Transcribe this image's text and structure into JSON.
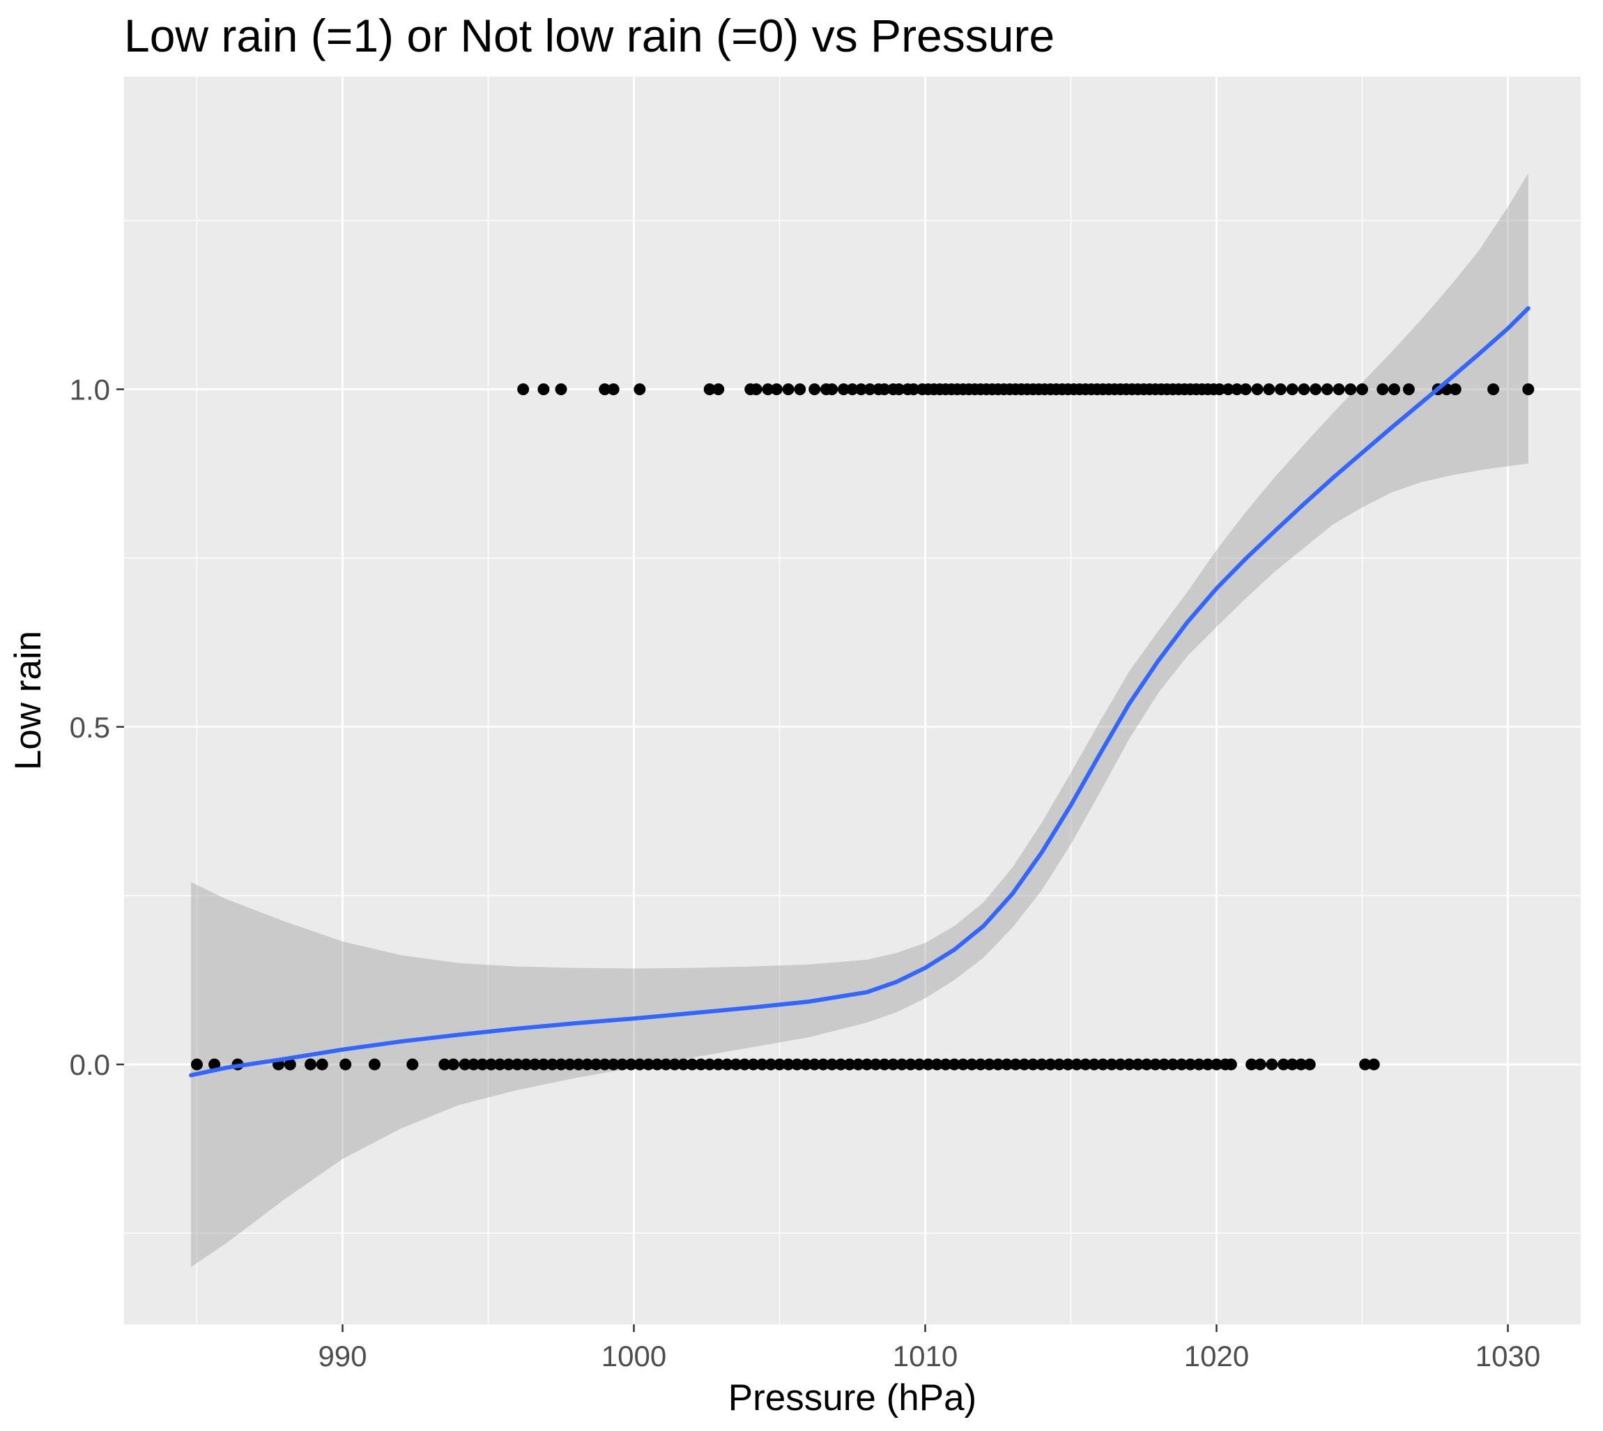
{
  "chart_data": {
    "type": "scatter",
    "title": "Low rain (=1) or Not low rain (=0) vs Pressure",
    "xlabel": "Pressure (hPa)",
    "ylabel": "Low rain",
    "xlim": [
      982.5,
      1032.5
    ],
    "ylim": [
      -0.385,
      1.463
    ],
    "x_ticks": [
      990,
      1000,
      1010,
      1020,
      1030
    ],
    "x_tick_labels": [
      "990",
      "1000",
      "1010",
      "1020",
      "1030"
    ],
    "y_ticks": [
      0.0,
      0.5,
      1.0
    ],
    "y_tick_labels": [
      "0.0",
      "0.5",
      "1.0"
    ],
    "x_minor_ticks": [
      985,
      995,
      1005,
      1015,
      1025
    ],
    "y_minor_ticks": [
      -0.25,
      0.25,
      0.75,
      1.25
    ],
    "grid": true,
    "legend": "none",
    "colors": {
      "panel": "#ebebeb",
      "grid": "#ffffff",
      "points": "#000000",
      "smooth_line": "#3366ff",
      "ribbon": "#999999"
    },
    "points_y1": [
      996.2,
      996.9,
      997.5,
      999.0,
      999.3,
      1000.2,
      1002.6,
      1002.9,
      1004.0,
      1004.2,
      1004.6,
      1004.9,
      1005.3,
      1005.7,
      1006.2,
      1006.6,
      1006.8,
      1007.2,
      1007.5,
      1007.8,
      1008.1,
      1008.4,
      1008.6,
      1008.9,
      1009.1,
      1009.4,
      1009.6,
      1009.9,
      1010.1,
      1010.3,
      1010.5,
      1010.7,
      1010.9,
      1011.1,
      1011.3,
      1011.5,
      1011.7,
      1011.9,
      1012.1,
      1012.3,
      1012.5,
      1012.7,
      1012.9,
      1013.1,
      1013.3,
      1013.5,
      1013.7,
      1013.9,
      1014.1,
      1014.3,
      1014.5,
      1014.7,
      1014.9,
      1015.1,
      1015.3,
      1015.5,
      1015.7,
      1015.9,
      1016.1,
      1016.3,
      1016.5,
      1016.7,
      1016.9,
      1017.1,
      1017.3,
      1017.5,
      1017.7,
      1017.9,
      1018.1,
      1018.3,
      1018.5,
      1018.7,
      1018.9,
      1019.1,
      1019.3,
      1019.5,
      1019.7,
      1019.9,
      1020.1,
      1020.4,
      1020.7,
      1021.0,
      1021.4,
      1021.8,
      1022.2,
      1022.6,
      1023.0,
      1023.4,
      1023.8,
      1024.2,
      1024.6,
      1025.0,
      1025.7,
      1026.1,
      1026.6,
      1027.6,
      1027.9,
      1028.2,
      1029.5,
      1030.7
    ],
    "points_y0": [
      985.0,
      985.6,
      986.4,
      987.8,
      988.2,
      988.9,
      989.3,
      990.1,
      991.1,
      992.4,
      993.5,
      993.8,
      994.2,
      994.5,
      994.8,
      995.1,
      995.4,
      995.7,
      996.0,
      996.3,
      996.6,
      996.9,
      997.2,
      997.5,
      997.8,
      998.1,
      998.4,
      998.7,
      999.0,
      999.3,
      999.6,
      999.9,
      1000.2,
      1000.5,
      1000.8,
      1001.1,
      1001.4,
      1001.7,
      1002.0,
      1002.3,
      1002.6,
      1002.9,
      1003.2,
      1003.5,
      1003.8,
      1004.1,
      1004.4,
      1004.7,
      1005.0,
      1005.3,
      1005.6,
      1005.9,
      1006.2,
      1006.5,
      1006.8,
      1007.1,
      1007.4,
      1007.7,
      1008.0,
      1008.3,
      1008.6,
      1008.9,
      1009.2,
      1009.5,
      1009.8,
      1010.1,
      1010.4,
      1010.7,
      1011.0,
      1011.3,
      1011.6,
      1011.9,
      1012.2,
      1012.5,
      1012.8,
      1013.1,
      1013.4,
      1013.7,
      1014.0,
      1014.3,
      1014.6,
      1014.9,
      1015.2,
      1015.5,
      1015.8,
      1016.1,
      1016.4,
      1016.7,
      1017.0,
      1017.3,
      1017.6,
      1017.9,
      1018.2,
      1018.5,
      1018.8,
      1019.1,
      1019.4,
      1019.7,
      1020.0,
      1020.3,
      1020.5,
      1021.2,
      1021.5,
      1021.9,
      1022.3,
      1022.6,
      1022.9,
      1023.2,
      1025.1,
      1025.4
    ],
    "smooth_x": [
      984.8,
      986,
      988,
      990,
      992,
      994,
      996,
      998,
      1000,
      1002,
      1004,
      1006,
      1008,
      1009,
      1010,
      1011,
      1012,
      1013,
      1014,
      1015,
      1016,
      1017,
      1018,
      1019,
      1020,
      1021,
      1022,
      1023,
      1024,
      1025,
      1026,
      1027,
      1028,
      1029,
      1030,
      1030.7
    ],
    "smooth_y": [
      -0.016,
      -0.005,
      0.008,
      0.022,
      0.034,
      0.044,
      0.053,
      0.061,
      0.068,
      0.076,
      0.084,
      0.093,
      0.107,
      0.122,
      0.143,
      0.17,
      0.205,
      0.253,
      0.314,
      0.384,
      0.46,
      0.534,
      0.598,
      0.655,
      0.705,
      0.749,
      0.79,
      0.83,
      0.869,
      0.906,
      0.943,
      0.979,
      1.015,
      1.052,
      1.09,
      1.12
    ],
    "ci_lower": [
      -0.3,
      -0.265,
      -0.2,
      -0.14,
      -0.095,
      -0.06,
      -0.038,
      -0.02,
      -0.005,
      0.01,
      0.025,
      0.04,
      0.062,
      0.077,
      0.098,
      0.125,
      0.158,
      0.203,
      0.258,
      0.326,
      0.403,
      0.482,
      0.55,
      0.605,
      0.648,
      0.69,
      0.73,
      0.765,
      0.8,
      0.825,
      0.847,
      0.862,
      0.872,
      0.88,
      0.886,
      0.89
    ],
    "ci_upper": [
      0.27,
      0.245,
      0.212,
      0.182,
      0.162,
      0.15,
      0.145,
      0.143,
      0.142,
      0.143,
      0.145,
      0.148,
      0.155,
      0.165,
      0.18,
      0.205,
      0.24,
      0.292,
      0.358,
      0.432,
      0.508,
      0.582,
      0.642,
      0.7,
      0.762,
      0.818,
      0.87,
      0.918,
      0.965,
      1.01,
      1.055,
      1.102,
      1.152,
      1.205,
      1.27,
      1.32
    ]
  }
}
